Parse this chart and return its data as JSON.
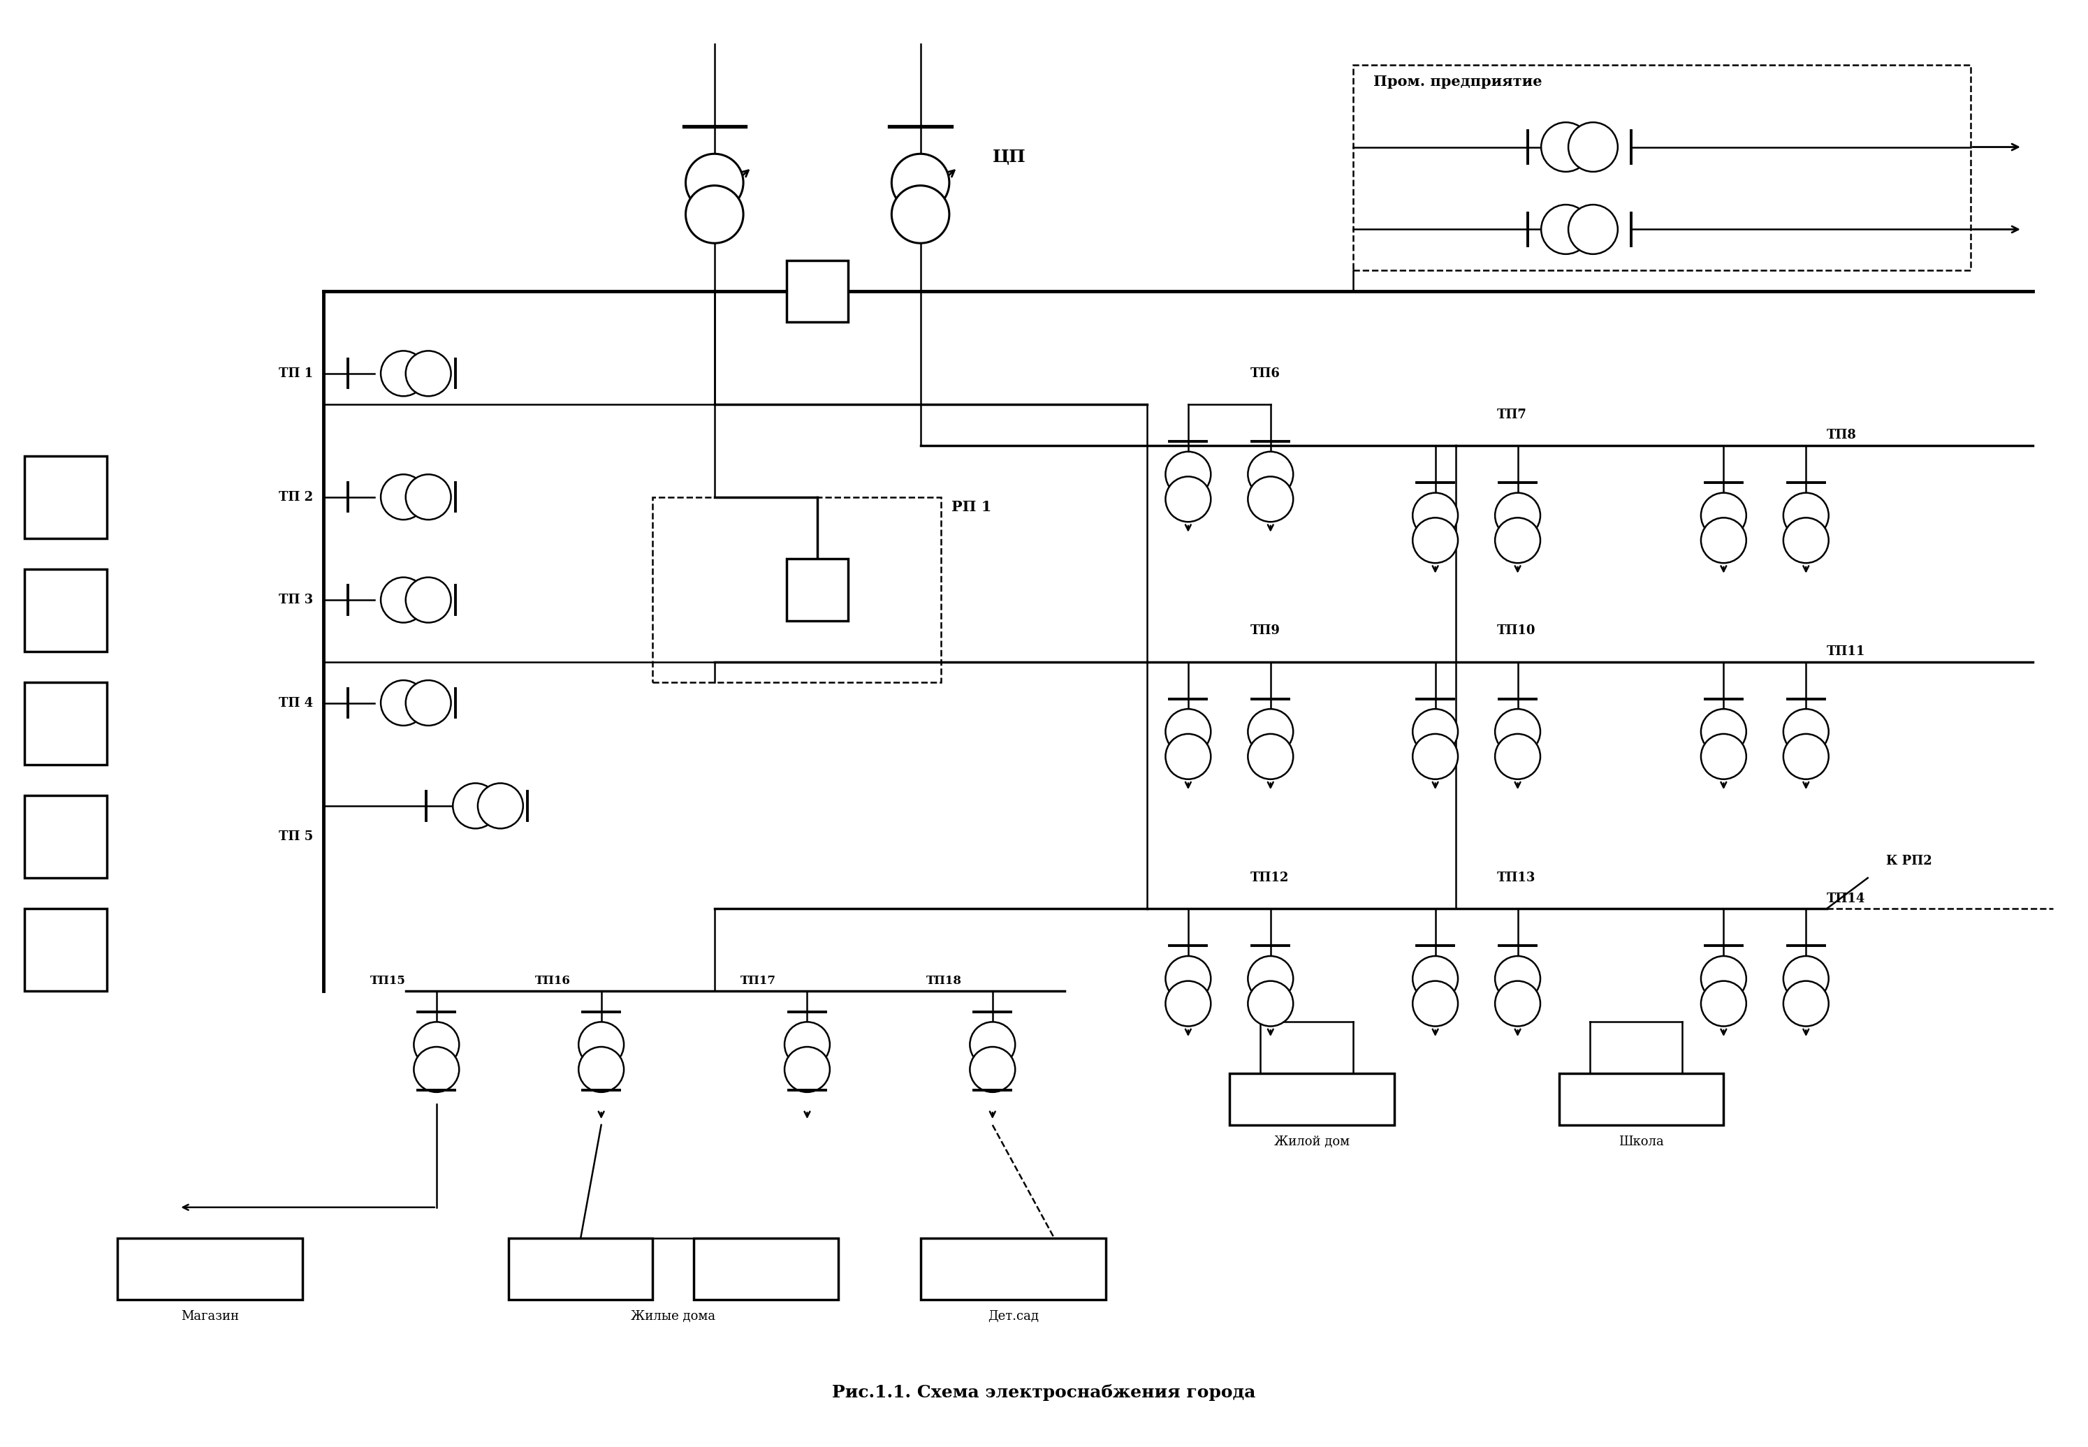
{
  "title": "Рис.1.1. Схема электроснабжения города",
  "background_color": "#ffffff",
  "line_color": "#000000",
  "fig_width": 29.89,
  "fig_height": 20.72,
  "cp_label": "ЦП",
  "rp1_label": "РП 1",
  "krp2_label": "К РП2",
  "prom_label": "Пром. предприятие",
  "tp_left": [
    "ТП 1",
    "ТП 2",
    "ТП 3",
    "ТП 4",
    "ТП 5"
  ],
  "tp_row1": [
    "ТП6",
    "ТП7",
    "ТП8"
  ],
  "tp_row2": [
    "ТП9",
    "ТП10",
    "ТП11"
  ],
  "tp_row3": [
    "ТП12",
    "ТП13",
    "ТП14"
  ],
  "tp_bottom": [
    "ТП15",
    "ТП16",
    "ТП17",
    "ТП18"
  ],
  "building_labels": [
    "Магазин",
    "Жилые дома",
    "Дет.сад",
    "Жилой дом",
    "Школа"
  ]
}
